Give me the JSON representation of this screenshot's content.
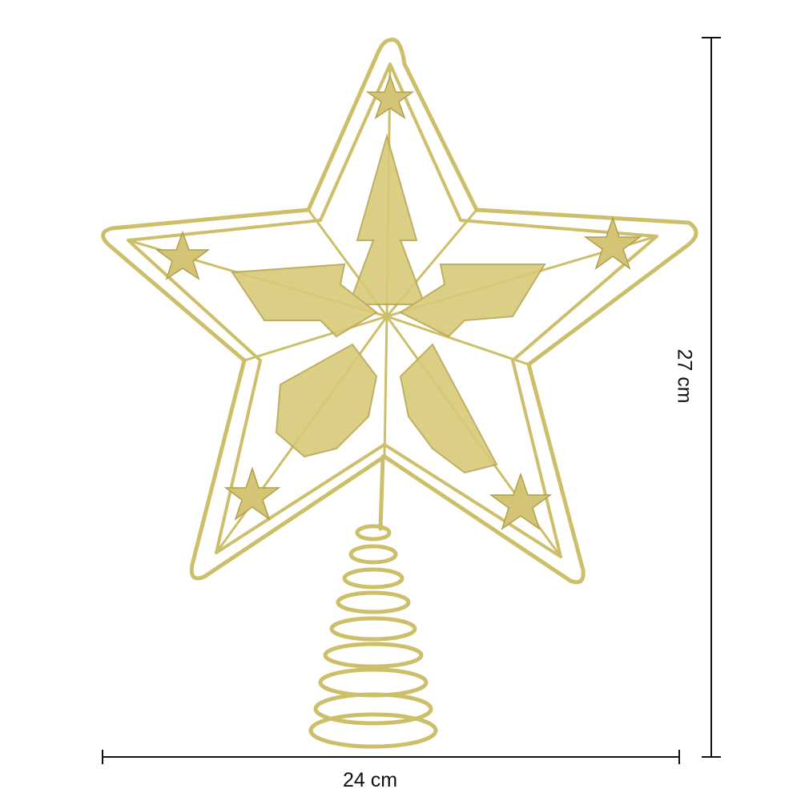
{
  "dimensions": {
    "width_label": "24 cm",
    "height_label": "27 cm"
  },
  "product": {
    "icon": "gold-glitter-star-tree-topper",
    "color": "#cdbf6a",
    "highlight_color": "#e8dc94",
    "shadow_color": "#a8973f"
  },
  "dimension_line_color": "#111111"
}
